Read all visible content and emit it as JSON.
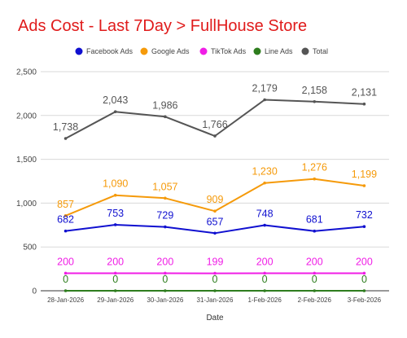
{
  "chart_data": {
    "type": "line",
    "title": "Ads Cost - Last 7Day > FullHouse Store",
    "title_color": "#e01b1b",
    "xlabel": "Date",
    "ylabel": "",
    "categories": [
      "28-Jan-2026",
      "29-Jan-2026",
      "30-Jan-2026",
      "31-Jan-2026",
      "1-Feb-2026",
      "2-Feb-2026",
      "3-Feb-2026"
    ],
    "ylim": [
      0,
      2500
    ],
    "yticks": [
      0,
      500,
      1000,
      1500,
      2000,
      2500
    ],
    "ytick_labels": [
      "0",
      "500",
      "1,000",
      "1,500",
      "2,000",
      "2,500"
    ],
    "grid": true,
    "legend": "top",
    "series": [
      {
        "name": "Facebook Ads",
        "color": "#1010d0",
        "values": [
          682,
          753,
          729,
          657,
          748,
          681,
          732
        ],
        "labels": [
          "682",
          "753",
          "729",
          "657",
          "748",
          "681",
          "732"
        ]
      },
      {
        "name": "Google Ads",
        "color": "#f59a0a",
        "values": [
          857,
          1090,
          1057,
          909,
          1230,
          1276,
          1199
        ],
        "labels": [
          "857",
          "1,090",
          "1,057",
          "909",
          "1,230",
          "1,276",
          "1,199"
        ]
      },
      {
        "name": "TikTok Ads",
        "color": "#f01ee6",
        "values": [
          200,
          200,
          200,
          199,
          200,
          200,
          200
        ],
        "labels": [
          "200",
          "200",
          "200",
          "199",
          "200",
          "200",
          "200"
        ]
      },
      {
        "name": "Line Ads",
        "color": "#2e7d1e",
        "values": [
          0,
          0,
          0,
          0,
          0,
          0,
          0
        ],
        "labels": [
          "0",
          "0",
          "0",
          "0",
          "0",
          "0",
          "0"
        ]
      },
      {
        "name": "Total",
        "color": "#555555",
        "values": [
          1738,
          2043,
          1986,
          1766,
          2179,
          2158,
          2131
        ],
        "labels": [
          "1,738",
          "2,043",
          "1,986",
          "1,766",
          "2,179",
          "2,158",
          "2,131"
        ]
      }
    ]
  }
}
